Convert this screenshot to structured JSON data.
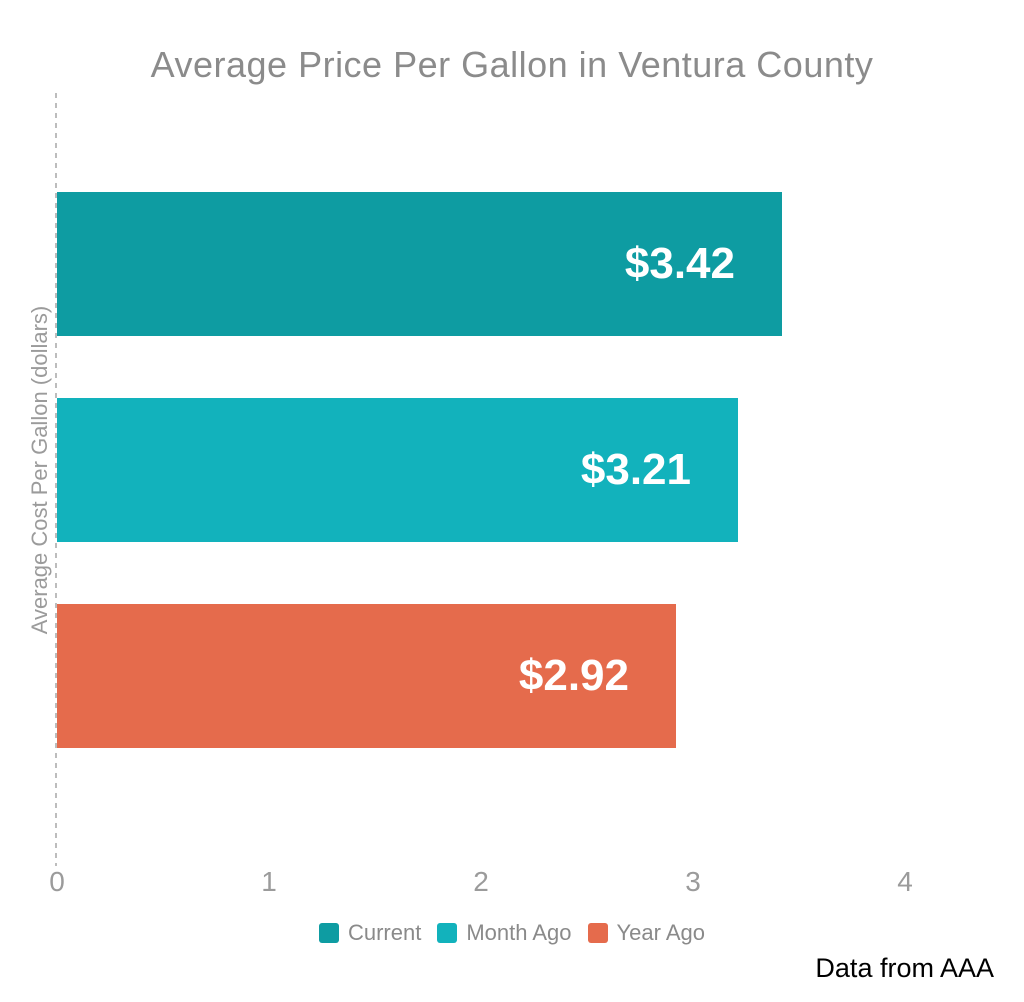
{
  "chart_data": {
    "type": "bar",
    "orientation": "horizontal",
    "title": "Average Price Per Gallon in Ventura County",
    "xlabel": "",
    "ylabel": "Average Cost Per Gallon (dollars)",
    "xlim": [
      0,
      4.4
    ],
    "x_ticks": [
      "0",
      "1",
      "2",
      "3",
      "4"
    ],
    "x_tick_values": [
      0,
      1,
      2,
      3,
      4
    ],
    "grid": false,
    "legend_position": "bottom",
    "series": [
      {
        "name": "Current",
        "value": 3.42,
        "data_label": "$3.42",
        "color": "#0E9CA2"
      },
      {
        "name": "Month Ago",
        "value": 3.21,
        "data_label": "$3.21",
        "color": "#12B2BC"
      },
      {
        "name": "Year Ago",
        "value": 2.92,
        "data_label": "$2.92",
        "color": "#E56B4C"
      }
    ],
    "source_note": "Data from AAA",
    "colors": {
      "title_text": "#8B8B8B",
      "axis_text": "#9B9B9B",
      "axis_line": "#BDBDBD",
      "legend_text": "#8A8A8A",
      "bar_label_text": "#FFFFFF",
      "source_text": "#000000"
    }
  }
}
